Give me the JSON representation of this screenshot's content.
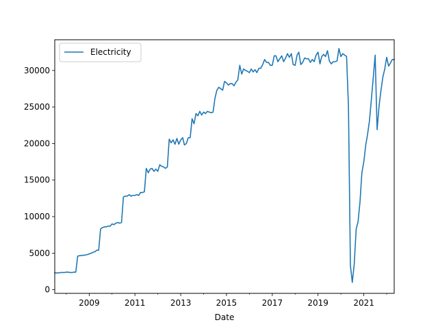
{
  "chart_data": {
    "type": "line",
    "title": "",
    "xlabel": "Date",
    "ylabel": "",
    "x_type": "date",
    "xlim": [
      "2007-07-01",
      "2022-05-01"
    ],
    "ylim": [
      -500,
      34200
    ],
    "x_ticks": [
      {
        "date": "2009-01-01",
        "label": "2009"
      },
      {
        "date": "2011-01-01",
        "label": "2011"
      },
      {
        "date": "2013-01-01",
        "label": "2013"
      },
      {
        "date": "2015-01-01",
        "label": "2015"
      },
      {
        "date": "2017-01-01",
        "label": "2017"
      },
      {
        "date": "2019-01-01",
        "label": "2019"
      },
      {
        "date": "2021-01-01",
        "label": "2021"
      }
    ],
    "y_ticks": [
      {
        "value": 0,
        "label": "0"
      },
      {
        "value": 5000,
        "label": "5000"
      },
      {
        "value": 10000,
        "label": "10000"
      },
      {
        "value": 15000,
        "label": "15000"
      },
      {
        "value": 20000,
        "label": "20000"
      },
      {
        "value": 25000,
        "label": "25000"
      },
      {
        "value": 30000,
        "label": "30000"
      }
    ],
    "grid": false,
    "legend_position": "top-left",
    "series": [
      {
        "name": "Electricity",
        "color": "#1f77b4",
        "points": [
          [
            "2007-07-01",
            2300
          ],
          [
            "2007-08-01",
            2300
          ],
          [
            "2007-09-01",
            2300
          ],
          [
            "2007-10-01",
            2350
          ],
          [
            "2007-11-01",
            2350
          ],
          [
            "2007-12-01",
            2350
          ],
          [
            "2008-01-01",
            2400
          ],
          [
            "2008-02-01",
            2400
          ],
          [
            "2008-03-01",
            2350
          ],
          [
            "2008-04-01",
            2350
          ],
          [
            "2008-05-01",
            2400
          ],
          [
            "2008-06-01",
            2400
          ],
          [
            "2008-07-01",
            4600
          ],
          [
            "2008-08-01",
            4650
          ],
          [
            "2008-09-01",
            4700
          ],
          [
            "2008-10-01",
            4700
          ],
          [
            "2008-11-01",
            4750
          ],
          [
            "2008-12-01",
            4800
          ],
          [
            "2009-01-01",
            4900
          ],
          [
            "2009-02-01",
            5000
          ],
          [
            "2009-03-01",
            5100
          ],
          [
            "2009-04-01",
            5200
          ],
          [
            "2009-05-01",
            5400
          ],
          [
            "2009-06-01",
            5400
          ],
          [
            "2009-07-01",
            8300
          ],
          [
            "2009-08-01",
            8500
          ],
          [
            "2009-09-01",
            8600
          ],
          [
            "2009-10-01",
            8600
          ],
          [
            "2009-11-01",
            8700
          ],
          [
            "2009-12-01",
            8700
          ],
          [
            "2010-01-01",
            9000
          ],
          [
            "2010-02-01",
            8900
          ],
          [
            "2010-03-01",
            9100
          ],
          [
            "2010-04-01",
            9200
          ],
          [
            "2010-05-01",
            9100
          ],
          [
            "2010-06-01",
            9200
          ],
          [
            "2010-07-01",
            12700
          ],
          [
            "2010-08-01",
            12800
          ],
          [
            "2010-09-01",
            12800
          ],
          [
            "2010-10-01",
            13000
          ],
          [
            "2010-11-01",
            12800
          ],
          [
            "2010-12-01",
            12900
          ],
          [
            "2011-01-01",
            12900
          ],
          [
            "2011-02-01",
            13000
          ],
          [
            "2011-03-01",
            12900
          ],
          [
            "2011-04-01",
            13300
          ],
          [
            "2011-05-01",
            13300
          ],
          [
            "2011-06-01",
            13400
          ],
          [
            "2011-07-01",
            16600
          ],
          [
            "2011-08-01",
            16000
          ],
          [
            "2011-09-01",
            16500
          ],
          [
            "2011-10-01",
            16600
          ],
          [
            "2011-11-01",
            16200
          ],
          [
            "2011-12-01",
            16500
          ],
          [
            "2012-01-01",
            16200
          ],
          [
            "2012-02-01",
            17100
          ],
          [
            "2012-03-01",
            16900
          ],
          [
            "2012-04-01",
            16800
          ],
          [
            "2012-05-01",
            16600
          ],
          [
            "2012-06-01",
            16800
          ],
          [
            "2012-07-01",
            20600
          ],
          [
            "2012-08-01",
            20100
          ],
          [
            "2012-09-01",
            20500
          ],
          [
            "2012-10-01",
            19900
          ],
          [
            "2012-11-01",
            20700
          ],
          [
            "2012-12-01",
            19900
          ],
          [
            "2013-01-01",
            20500
          ],
          [
            "2013-02-01",
            20800
          ],
          [
            "2013-03-01",
            19800
          ],
          [
            "2013-04-01",
            20000
          ],
          [
            "2013-05-01",
            20800
          ],
          [
            "2013-06-01",
            20800
          ],
          [
            "2013-07-01",
            23400
          ],
          [
            "2013-08-01",
            22700
          ],
          [
            "2013-09-01",
            24100
          ],
          [
            "2013-10-01",
            23800
          ],
          [
            "2013-11-01",
            24400
          ],
          [
            "2013-12-01",
            23900
          ],
          [
            "2014-01-01",
            24300
          ],
          [
            "2014-02-01",
            24100
          ],
          [
            "2014-03-01",
            24400
          ],
          [
            "2014-04-01",
            24300
          ],
          [
            "2014-05-01",
            24200
          ],
          [
            "2014-06-01",
            24300
          ],
          [
            "2014-07-01",
            26200
          ],
          [
            "2014-08-01",
            27300
          ],
          [
            "2014-09-01",
            27700
          ],
          [
            "2014-10-01",
            27500
          ],
          [
            "2014-11-01",
            27300
          ],
          [
            "2014-12-01",
            28500
          ],
          [
            "2015-01-01",
            28300
          ],
          [
            "2015-02-01",
            28000
          ],
          [
            "2015-03-01",
            28200
          ],
          [
            "2015-04-01",
            28200
          ],
          [
            "2015-05-01",
            27900
          ],
          [
            "2015-06-01",
            28400
          ],
          [
            "2015-07-01",
            28700
          ],
          [
            "2015-08-01",
            30700
          ],
          [
            "2015-09-01",
            29500
          ],
          [
            "2015-10-01",
            30200
          ],
          [
            "2015-11-01",
            30000
          ],
          [
            "2015-12-01",
            29900
          ],
          [
            "2016-01-01",
            29700
          ],
          [
            "2016-02-01",
            30200
          ],
          [
            "2016-03-01",
            29800
          ],
          [
            "2016-04-01",
            30100
          ],
          [
            "2016-05-01",
            29700
          ],
          [
            "2016-06-01",
            30300
          ],
          [
            "2016-07-01",
            30300
          ],
          [
            "2016-08-01",
            30800
          ],
          [
            "2016-09-01",
            31500
          ],
          [
            "2016-10-01",
            31100
          ],
          [
            "2016-11-01",
            31100
          ],
          [
            "2016-12-01",
            30700
          ],
          [
            "2017-01-01",
            30700
          ],
          [
            "2017-02-01",
            32000
          ],
          [
            "2017-03-01",
            32000
          ],
          [
            "2017-04-01",
            31200
          ],
          [
            "2017-05-01",
            31600
          ],
          [
            "2017-06-01",
            32000
          ],
          [
            "2017-07-01",
            31200
          ],
          [
            "2017-08-01",
            31700
          ],
          [
            "2017-09-01",
            32300
          ],
          [
            "2017-10-01",
            31800
          ],
          [
            "2017-11-01",
            32300
          ],
          [
            "2017-12-01",
            30800
          ],
          [
            "2018-01-01",
            30700
          ],
          [
            "2018-02-01",
            32100
          ],
          [
            "2018-03-01",
            32500
          ],
          [
            "2018-04-01",
            30800
          ],
          [
            "2018-05-01",
            31100
          ],
          [
            "2018-06-01",
            31700
          ],
          [
            "2018-07-01",
            31600
          ],
          [
            "2018-08-01",
            31600
          ],
          [
            "2018-09-01",
            31100
          ],
          [
            "2018-10-01",
            31500
          ],
          [
            "2018-11-01",
            31200
          ],
          [
            "2018-12-01",
            32100
          ],
          [
            "2019-01-01",
            32500
          ],
          [
            "2019-02-01",
            30900
          ],
          [
            "2019-03-01",
            31900
          ],
          [
            "2019-04-01",
            32200
          ],
          [
            "2019-05-01",
            31900
          ],
          [
            "2019-06-01",
            32700
          ],
          [
            "2019-07-01",
            31300
          ],
          [
            "2019-08-01",
            30900
          ],
          [
            "2019-09-01",
            31200
          ],
          [
            "2019-10-01",
            31200
          ],
          [
            "2019-11-01",
            31300
          ],
          [
            "2019-12-01",
            33000
          ],
          [
            "2020-01-01",
            31900
          ],
          [
            "2020-02-01",
            32300
          ],
          [
            "2020-03-01",
            32100
          ],
          [
            "2020-04-01",
            31900
          ],
          [
            "2020-05-01",
            25000
          ],
          [
            "2020-06-01",
            3300
          ],
          [
            "2020-07-01",
            1000
          ],
          [
            "2020-08-01",
            3500
          ],
          [
            "2020-09-01",
            8300
          ],
          [
            "2020-10-01",
            9300
          ],
          [
            "2020-11-01",
            12000
          ],
          [
            "2020-12-01",
            16000
          ],
          [
            "2021-01-01",
            17500
          ],
          [
            "2021-02-01",
            19800
          ],
          [
            "2021-03-01",
            21200
          ],
          [
            "2021-04-01",
            23100
          ],
          [
            "2021-05-01",
            26000
          ],
          [
            "2021-06-01",
            29000
          ],
          [
            "2021-07-01",
            32100
          ],
          [
            "2021-08-01",
            21900
          ],
          [
            "2021-09-01",
            25100
          ],
          [
            "2021-10-01",
            27200
          ],
          [
            "2021-11-01",
            29100
          ],
          [
            "2021-12-01",
            30200
          ],
          [
            "2022-01-01",
            31800
          ],
          [
            "2022-02-01",
            30600
          ],
          [
            "2022-03-01",
            31000
          ],
          [
            "2022-04-01",
            31500
          ],
          [
            "2022-05-01",
            31500
          ]
        ]
      }
    ]
  }
}
